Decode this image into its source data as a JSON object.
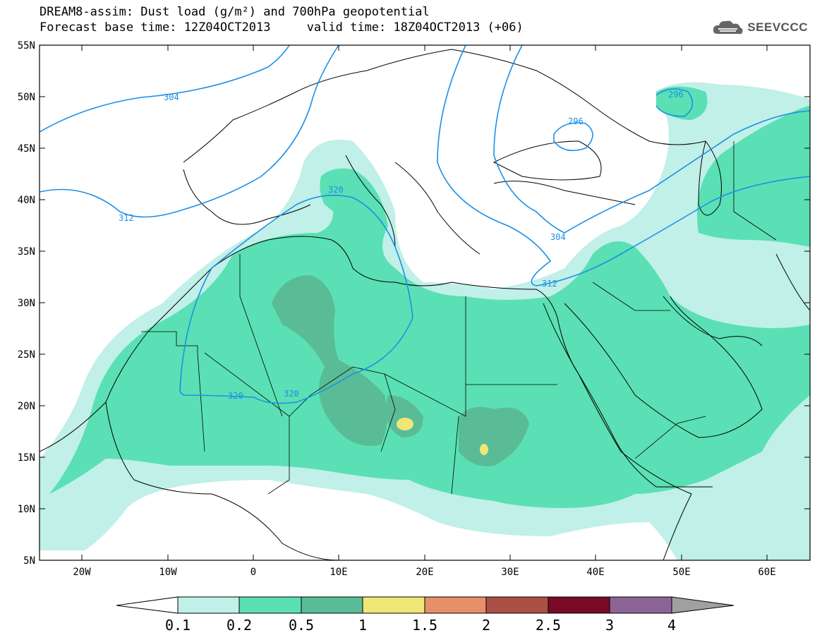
{
  "title": {
    "line1": "DREAM8-assim: Dust load (g/m²) and 700hPa geopotential",
    "line2": "Forecast base time: 12Z04OCT2013     valid time: 18Z04OCT2013 (+06)"
  },
  "logo": {
    "text": "SEEVCCC",
    "icon": "cloud-icon"
  },
  "map": {
    "lon_range": [
      -25,
      65
    ],
    "lat_range": [
      5,
      55
    ],
    "lat_ticks": [
      "55N",
      "50N",
      "45N",
      "40N",
      "35N",
      "30N",
      "25N",
      "20N",
      "15N",
      "10N",
      "5N"
    ],
    "lon_ticks": [
      "20W",
      "10W",
      "0",
      "10E",
      "20E",
      "30E",
      "40E",
      "50E",
      "60E"
    ],
    "contour_color": "#1e8fe6",
    "contour_labels": [
      "304",
      "312",
      "320",
      "320",
      "320",
      "296",
      "296",
      "304",
      "312"
    ]
  },
  "colorbar": {
    "labels": [
      "0.1",
      "0.2",
      "0.5",
      "1",
      "1.5",
      "2",
      "2.5",
      "3",
      "4"
    ],
    "colors": [
      "#c0f0e8",
      "#5ae0b4",
      "#5abc96",
      "#f0e678",
      "#e6906a",
      "#aa5044",
      "#780a28",
      "#8c6496",
      "#a0a0a0"
    ]
  },
  "colors": {
    "low": "#c0f0e8",
    "mid": "#5ae0b4",
    "high": "#5abc96",
    "peak": "#f0e678"
  }
}
